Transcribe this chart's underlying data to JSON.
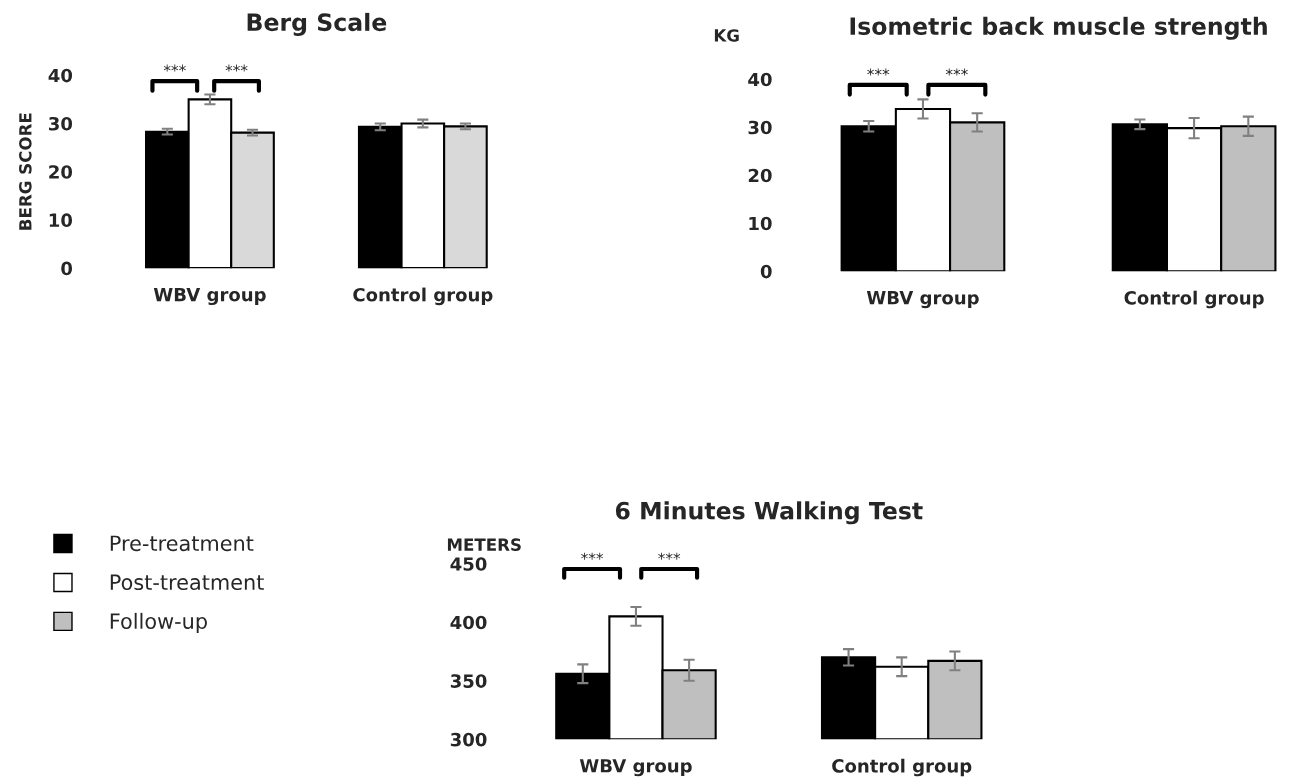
{
  "chart_data": [
    {
      "type": "bar",
      "title": "Berg Scale",
      "ylabel": "BERG SCORE",
      "categories": [
        "WBV group",
        "Control group"
      ],
      "ylim": [
        0,
        40
      ],
      "yticks": [
        0,
        10,
        20,
        30,
        40
      ],
      "grid": false,
      "legend": false,
      "annotations": [
        "***",
        "***"
      ],
      "series": [
        {
          "color": "#000000",
          "values": [
            28.3,
            29.3
          ],
          "errors": [
            0.6,
            0.7
          ]
        },
        {
          "color": "#ffffff",
          "values": [
            35.0,
            30.0
          ],
          "errors": [
            1.0,
            0.8
          ]
        },
        {
          "color": "#d9d9d9",
          "values": [
            28.1,
            29.4
          ],
          "errors": [
            0.6,
            0.6
          ]
        }
      ]
    },
    {
      "type": "bar",
      "title": "Isometric back muscle strength",
      "ylabel": "KG",
      "categories": [
        "WBV group",
        "Control group"
      ],
      "ylim": [
        0,
        40
      ],
      "yticks": [
        0,
        10,
        20,
        30,
        40
      ],
      "grid": false,
      "legend": false,
      "annotations": [
        "***",
        "***"
      ],
      "series": [
        {
          "color": "#000000",
          "values": [
            30.2,
            30.6
          ],
          "errors": [
            1.1,
            1.0
          ]
        },
        {
          "color": "#ffffff",
          "values": [
            33.8,
            29.8
          ],
          "errors": [
            2.0,
            2.1
          ]
        },
        {
          "color": "#bfbfbf",
          "values": [
            31.0,
            30.2
          ],
          "errors": [
            1.9,
            2.0
          ]
        }
      ]
    },
    {
      "type": "bar",
      "title": "6 Minutes Walking Test",
      "ylabel": "METERS",
      "categories": [
        "WBV group",
        "Control group"
      ],
      "ylim": [
        300,
        450
      ],
      "yticks": [
        300,
        350,
        400,
        450
      ],
      "grid": false,
      "legend": "left",
      "annotations": [
        "***",
        "***"
      ],
      "series": [
        {
          "name": "Pre-treatment",
          "color": "#000000",
          "values": [
            356,
            370
          ],
          "errors": [
            8,
            7
          ]
        },
        {
          "name": "Post-treatment",
          "color": "#ffffff",
          "values": [
            405,
            362
          ],
          "errors": [
            8,
            8
          ]
        },
        {
          "name": "Follow-up",
          "color": "#bfbfbf",
          "values": [
            359,
            367
          ],
          "errors": [
            9,
            8
          ]
        }
      ]
    }
  ]
}
